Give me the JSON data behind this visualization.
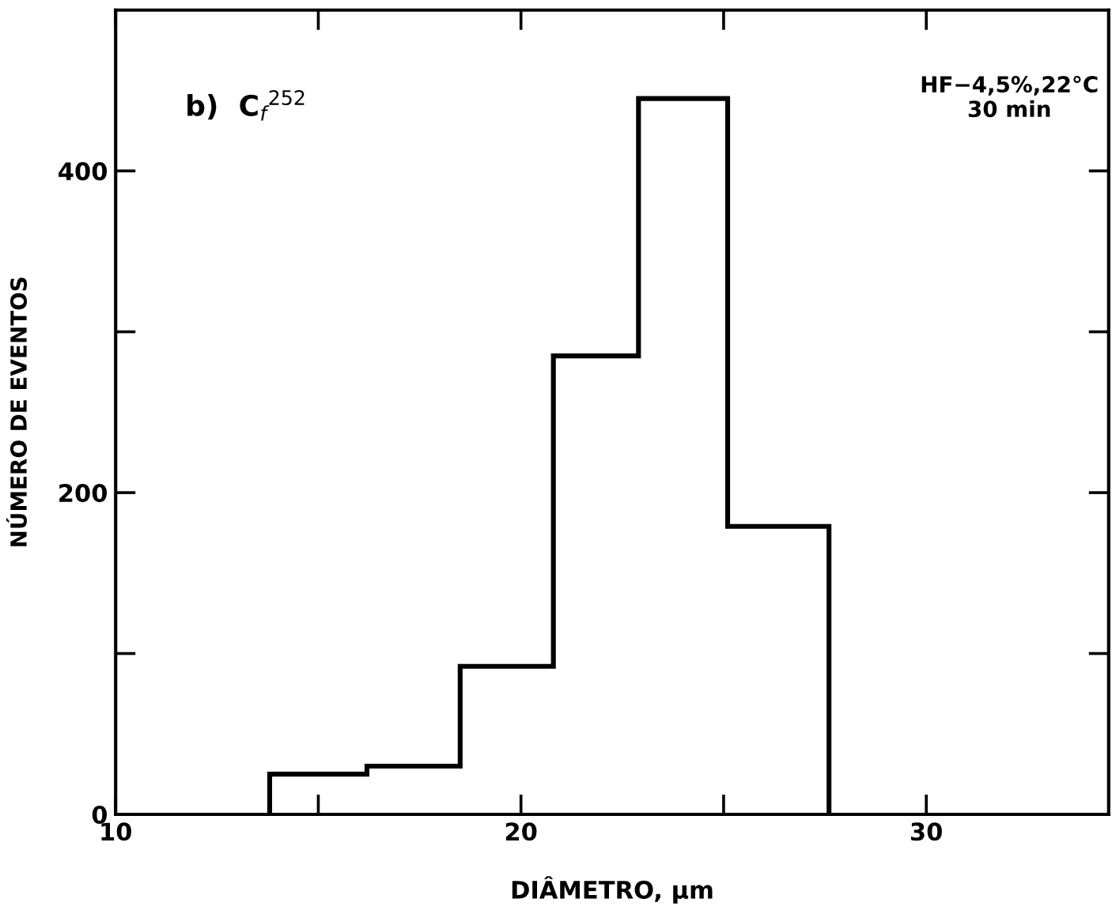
{
  "chart_data": {
    "type": "histogram",
    "xlabel": "DIÂMETRO, µm",
    "ylabel": "NÚMERO DE EVENTOS",
    "bins": [
      13.8,
      16.2,
      18.5,
      20.8,
      22.9,
      25.1,
      27.6
    ],
    "values": [
      25,
      30,
      92,
      285,
      445,
      179
    ],
    "color": "#000000",
    "xlim": [
      10,
      34.5
    ],
    "xticks": [
      10,
      {
        "value": 15,
        "label": null
      },
      20,
      {
        "value": 25,
        "label": null
      },
      30
    ],
    "ylim": [
      0,
      500
    ],
    "yticks": [
      0,
      {
        "value": 100,
        "label": null
      },
      200,
      {
        "value": 300,
        "label": null
      },
      400
    ],
    "grid": false,
    "annotations": [
      "b)  C$_{f}$$^{252}$",
      "HF−4,5%,22°C\n30 min"
    ]
  }
}
